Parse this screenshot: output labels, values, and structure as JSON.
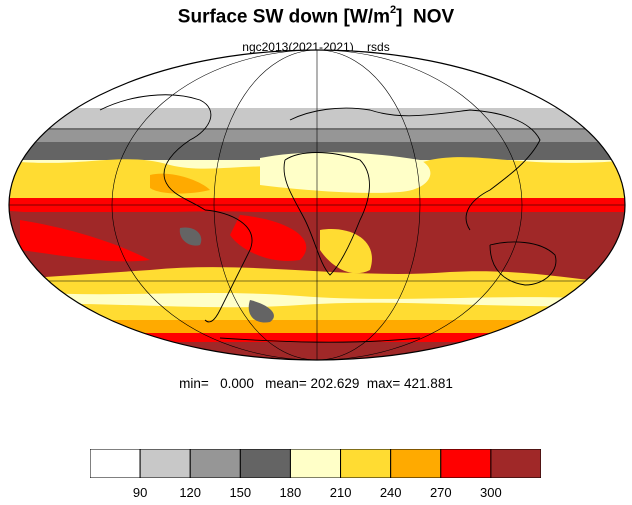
{
  "title": {
    "main": "Surface SW down [W/m",
    "sup": "2",
    "close": "]",
    "month": "NOV"
  },
  "subtitle": {
    "left": "ngc2013(2021-2021)",
    "right": "rsds"
  },
  "stats": {
    "min_label": "min=",
    "min": "0.000",
    "mean_label": "mean=",
    "mean": "202.629",
    "max_label": "max=",
    "max": "421.881"
  },
  "colorbar": {
    "colors": [
      "#ffffff",
      "#c8c8c8",
      "#969696",
      "#646464",
      "#ffffc8",
      "#ffdc32",
      "#ffaa00",
      "#ff0000",
      "#a02828"
    ],
    "labels": [
      "90",
      "120",
      "150",
      "180",
      "210",
      "240",
      "270",
      "300"
    ]
  }
}
